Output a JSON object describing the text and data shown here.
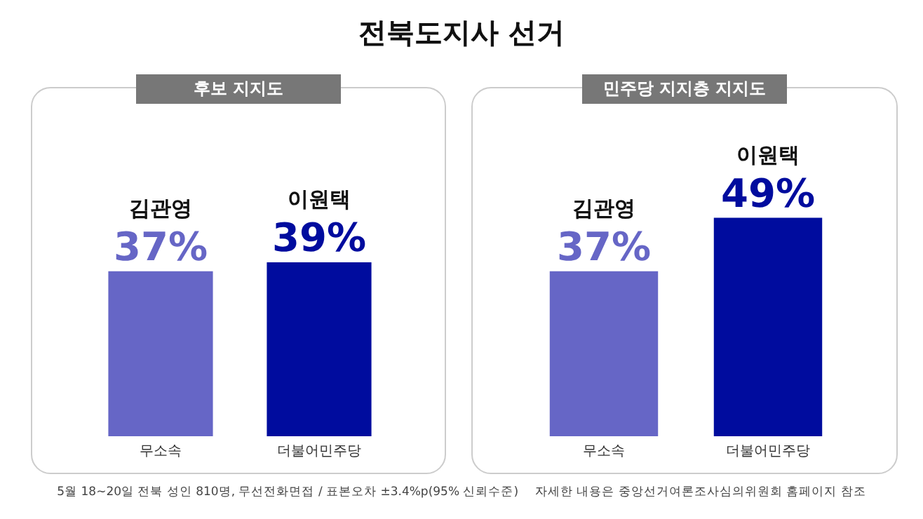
{
  "chart_data": [
    {
      "type": "bar",
      "title": "전북도지사 선거",
      "subtitle": "후보 지지도",
      "categories": [
        "무소속",
        "더불어민주당"
      ],
      "values": [
        37,
        39
      ],
      "colors": [
        "#6666c6",
        "#000c9e"
      ],
      "value_labels": [
        "37%",
        "39%"
      ],
      "tick_labels": "x",
      "grid": false,
      "legend": false,
      "annotations": [
        {
          "text": "김관영",
          "x": "무소속",
          "y": 37
        },
        {
          "text": "이원택",
          "x": "더불어민주당",
          "y": 39
        },
        "5월 18~20일 전북 성인 810명, 무선전화면접 / 표본오차 ±3.4%p(95% 신뢰수준)",
        "자세한 내용은 중앙선거여론조사심의위원회 홈페이지 참조"
      ]
    },
    {
      "type": "bar",
      "subtitle": "민주당 지지층 지지도",
      "categories": [
        "무소속",
        "더불어민주당"
      ],
      "values": [
        37,
        49
      ],
      "colors": [
        "#6666c6",
        "#000c9e"
      ],
      "value_labels": [
        "37%",
        "49%"
      ],
      "tick_labels": "x",
      "grid": false,
      "legend": false,
      "annotations": [
        {
          "text": "김관영",
          "x": "무소속",
          "y": 37
        },
        {
          "text": "이원택",
          "x": "더불어민주당",
          "y": 49
        }
      ]
    }
  ]
}
